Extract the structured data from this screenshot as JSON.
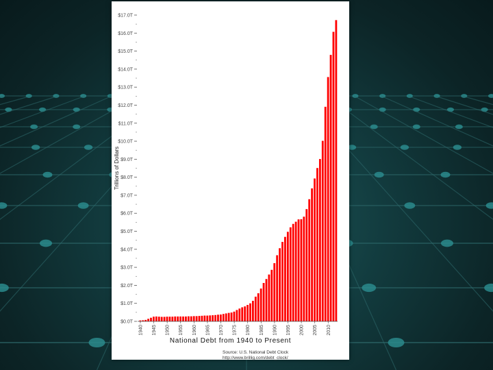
{
  "chart_data": {
    "type": "bar",
    "title": "National Debt from 1940 to Present",
    "ylabel": "Trillions of Dollars",
    "xlabel": "",
    "source": "Source: U.S. National Debt Clock",
    "source_url": "http://www.brillig.com/debt_clock/",
    "bar_color": "#ff0000",
    "ylim": [
      0,
      17
    ],
    "grid": false,
    "y_ticks": [
      {
        "value": 0,
        "label": "$0.0T"
      },
      {
        "value": 1,
        "label": "$1.0T"
      },
      {
        "value": 2,
        "label": "$2.0T"
      },
      {
        "value": 3,
        "label": "$3.0T"
      },
      {
        "value": 4,
        "label": "$4.0T"
      },
      {
        "value": 5,
        "label": "$5.0T"
      },
      {
        "value": 6,
        "label": "$6.0T"
      },
      {
        "value": 7,
        "label": "$7.0T"
      },
      {
        "value": 8,
        "label": "$8.0T"
      },
      {
        "value": 9,
        "label": "$9.0T"
      },
      {
        "value": 10,
        "label": "$10.0T"
      },
      {
        "value": 11,
        "label": "$11.0T"
      },
      {
        "value": 12,
        "label": "$12.0T"
      },
      {
        "value": 13,
        "label": "$13.0T"
      },
      {
        "value": 14,
        "label": "$14.0T"
      },
      {
        "value": 15,
        "label": "$15.0T"
      },
      {
        "value": 16,
        "label": "$16.0T"
      },
      {
        "value": 17,
        "label": "$17.0T"
      }
    ],
    "x_ticks": [
      "1940",
      "1945",
      "1950",
      "1955",
      "1960",
      "1965",
      "1970",
      "1975",
      "1980",
      "1985",
      "1990",
      "1995",
      "2000",
      "2005",
      "2010"
    ],
    "x": [
      1940,
      1941,
      1942,
      1943,
      1944,
      1945,
      1946,
      1947,
      1948,
      1949,
      1950,
      1951,
      1952,
      1953,
      1954,
      1955,
      1956,
      1957,
      1958,
      1959,
      1960,
      1961,
      1962,
      1963,
      1964,
      1965,
      1966,
      1967,
      1968,
      1969,
      1970,
      1971,
      1972,
      1973,
      1974,
      1975,
      1976,
      1977,
      1978,
      1979,
      1980,
      1981,
      1982,
      1983,
      1984,
      1985,
      1986,
      1987,
      1988,
      1989,
      1990,
      1991,
      1992,
      1993,
      1994,
      1995,
      1996,
      1997,
      1998,
      1999,
      2000,
      2001,
      2002,
      2003,
      2004,
      2005,
      2006,
      2007,
      2008,
      2009,
      2010,
      2011,
      2012,
      2013
    ],
    "values": [
      0.05,
      0.06,
      0.08,
      0.14,
      0.2,
      0.26,
      0.27,
      0.26,
      0.25,
      0.25,
      0.26,
      0.26,
      0.26,
      0.27,
      0.27,
      0.27,
      0.27,
      0.27,
      0.28,
      0.28,
      0.29,
      0.29,
      0.3,
      0.31,
      0.32,
      0.32,
      0.33,
      0.34,
      0.35,
      0.37,
      0.38,
      0.41,
      0.44,
      0.47,
      0.49,
      0.54,
      0.63,
      0.71,
      0.78,
      0.83,
      0.91,
      1.0,
      1.14,
      1.37,
      1.56,
      1.82,
      2.13,
      2.35,
      2.6,
      2.86,
      3.23,
      3.67,
      4.06,
      4.41,
      4.69,
      4.97,
      5.22,
      5.41,
      5.53,
      5.66,
      5.67,
      5.81,
      6.23,
      6.78,
      7.38,
      7.93,
      8.51,
      9.01,
      10.02,
      11.91,
      13.56,
      14.79,
      16.07,
      16.72
    ]
  }
}
